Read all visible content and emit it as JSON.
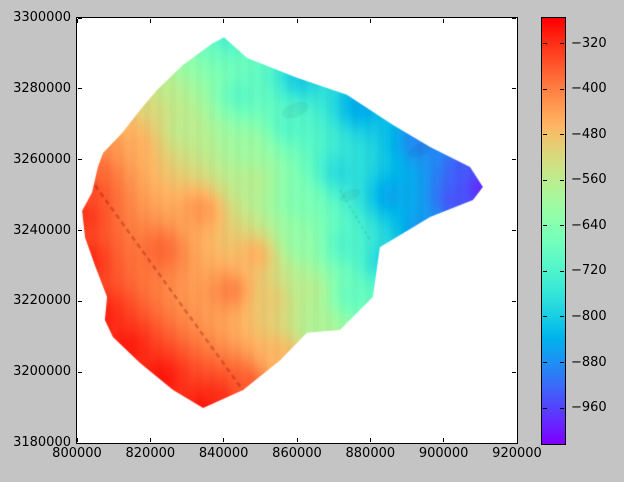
{
  "figure": {
    "background_color": "#c4c4c4",
    "plot_background": "#ffffff",
    "axis_color": "#000000",
    "label_color": "#000000"
  },
  "chart_data": {
    "type": "heatmap",
    "title": "",
    "xlabel": "",
    "ylabel": "",
    "grid": false,
    "colormap": "rainbow",
    "xlim": [
      800000,
      920000
    ],
    "ylim": [
      3180000,
      3300000
    ],
    "x_tick_values": [
      800000,
      820000,
      840000,
      860000,
      880000,
      900000,
      920000
    ],
    "x_tick_labels": [
      "800000",
      "820000",
      "840000",
      "860000",
      "880000",
      "900000",
      "920000"
    ],
    "y_tick_values": [
      3180000,
      3200000,
      3220000,
      3240000,
      3260000,
      3280000,
      3300000
    ],
    "y_tick_labels": [
      "3180000",
      "3200000",
      "3220000",
      "3240000",
      "3260000",
      "3280000",
      "3300000"
    ],
    "colorbar": {
      "position": "right",
      "vmin": -1023,
      "vmax": -275,
      "tick_values": [
        -320,
        -400,
        -480,
        -560,
        -640,
        -720,
        -800,
        -880,
        -960
      ],
      "tick_labels": [
        "−320",
        "−400",
        "−480",
        "−560",
        "−640",
        "−720",
        "−800",
        "−880",
        "−960"
      ]
    },
    "surface": {
      "boundary": [
        [
          840100,
          3294600
        ],
        [
          846400,
          3288700
        ],
        [
          860000,
          3283100
        ],
        [
          873600,
          3278300
        ],
        [
          886200,
          3269800
        ],
        [
          896300,
          3263600
        ],
        [
          907200,
          3257900
        ],
        [
          910700,
          3252300
        ],
        [
          908000,
          3248600
        ],
        [
          896300,
          3243800
        ],
        [
          882600,
          3235300
        ],
        [
          880700,
          3221200
        ],
        [
          871700,
          3211900
        ],
        [
          862700,
          3211100
        ],
        [
          855400,
          3203400
        ],
        [
          845300,
          3195000
        ],
        [
          834400,
          3189900
        ],
        [
          826200,
          3195000
        ],
        [
          817200,
          3202600
        ],
        [
          809800,
          3209900
        ],
        [
          807600,
          3214700
        ],
        [
          808200,
          3221200
        ],
        [
          804900,
          3230100
        ],
        [
          802200,
          3238000
        ],
        [
          801400,
          3245600
        ],
        [
          804100,
          3250700
        ],
        [
          805700,
          3257900
        ],
        [
          807100,
          3261900
        ],
        [
          812300,
          3267500
        ],
        [
          817200,
          3274000
        ],
        [
          821800,
          3279700
        ],
        [
          828900,
          3286700
        ],
        [
          836800,
          3292700
        ]
      ],
      "samples": [
        [
          840100,
          3294600,
          -735
        ],
        [
          860800,
          3283100,
          -810
        ],
        [
          877200,
          3275400,
          -855
        ],
        [
          893500,
          3265600,
          -895
        ],
        [
          905800,
          3257100,
          -940
        ],
        [
          910700,
          3252300,
          -1000
        ],
        [
          903100,
          3248600,
          -950
        ],
        [
          893500,
          3240100,
          -880
        ],
        [
          884000,
          3231700,
          -800
        ],
        [
          874500,
          3221800,
          -690
        ],
        [
          864900,
          3213300,
          -580
        ],
        [
          855400,
          3204800,
          -465
        ],
        [
          845800,
          3196400,
          -360
        ],
        [
          839000,
          3192700,
          -315
        ],
        [
          834400,
          3189900,
          -290
        ],
        [
          822600,
          3198400,
          -292
        ],
        [
          813100,
          3206800,
          -296
        ],
        [
          806300,
          3216100,
          -302
        ],
        [
          802200,
          3231700,
          -308
        ],
        [
          801400,
          3244400,
          -315
        ],
        [
          804100,
          3251400,
          -340
        ],
        [
          806300,
          3257600,
          -372
        ],
        [
          809500,
          3264100,
          -415
        ],
        [
          813900,
          3269500,
          -465
        ],
        [
          818500,
          3275400,
          -515
        ],
        [
          823500,
          3280800,
          -555
        ],
        [
          829500,
          3287300,
          -615
        ],
        [
          834900,
          3291500,
          -675
        ],
        [
          815300,
          3264700,
          -450
        ],
        [
          828900,
          3269200,
          -560
        ],
        [
          844500,
          3278300,
          -705
        ],
        [
          858100,
          3269800,
          -715
        ],
        [
          871700,
          3256500,
          -780
        ],
        [
          885400,
          3250000,
          -860
        ],
        [
          847200,
          3254300,
          -560
        ],
        [
          860800,
          3248600,
          -650
        ],
        [
          860800,
          3237300,
          -620
        ],
        [
          873100,
          3235900,
          -720
        ],
        [
          848500,
          3233100,
          -450
        ],
        [
          841700,
          3223200,
          -395
        ],
        [
          852600,
          3220400,
          -490
        ],
        [
          863500,
          3223200,
          -560
        ],
        [
          822600,
          3234500,
          -370
        ],
        [
          833500,
          3245800,
          -420
        ],
        [
          847200,
          3262700,
          -600
        ]
      ],
      "seams": [
        {
          "from": [
            803500,
            3254800
          ],
          "to": [
            847200,
            3192100
          ],
          "style": "dashed-dark"
        },
        {
          "from": [
            871700,
            3251400
          ],
          "to": [
            879900,
            3237300
          ],
          "style": "faint"
        }
      ],
      "smudges": [
        {
          "x": 859500,
          "y": 3274000,
          "rx": 3800,
          "ry": 2000,
          "rot": -20
        },
        {
          "x": 893500,
          "y": 3262700,
          "rx": 3300,
          "ry": 1700,
          "rot": -25
        },
        {
          "x": 874500,
          "y": 3250000,
          "rx": 3000,
          "ry": 1500,
          "rot": -20
        }
      ]
    }
  }
}
